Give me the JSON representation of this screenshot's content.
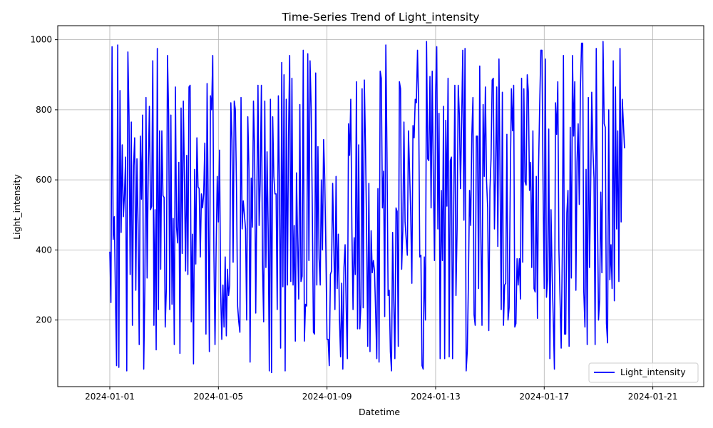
{
  "chart_data": {
    "type": "line",
    "title": "Time-Series Trend of Light_intensity",
    "xlabel": "Datetime",
    "ylabel": "Light_intensity",
    "x_ticks": [
      "2024-01-01",
      "2024-01-05",
      "2024-01-09",
      "2024-01-13",
      "2024-01-17",
      "2024-01-21"
    ],
    "y_ticks": [
      200,
      400,
      600,
      800,
      1000
    ],
    "xlim": [
      "2023-12-30T02:00",
      "2024-01-22T21:00"
    ],
    "ylim": [
      10,
      1040
    ],
    "grid": true,
    "legend_position": "lower-right",
    "series": [
      {
        "name": "Light_intensity",
        "color": "#0000ff",
        "x_start": "2024-01-01T00:00",
        "x_step_hours": 1,
        "values": [
          395,
          250,
          980,
          430,
          495,
          270,
          70,
          985,
          65,
          855,
          450,
          700,
          495,
          560,
          665,
          55,
          965,
          780,
          330,
          765,
          185,
          640,
          720,
          285,
          660,
          475,
          130,
          725,
          545,
          785,
          60,
          300,
          835,
          320,
          630,
          810,
          515,
          525,
          940,
          185,
          515,
          115,
          975,
          230,
          740,
          345,
          740,
          555,
          550,
          180,
          290,
          955,
          790,
          230,
          785,
          245,
          490,
          130,
          865,
          465,
          420,
          650,
          105,
          805,
          390,
          825,
          600,
          340,
          670,
          330,
          865,
          870,
          195,
          445,
          75,
          630,
          360,
          720,
          580,
          575,
          380,
          560,
          520,
          560,
          705,
          160,
          875,
          520,
          110,
          840,
          800,
          955,
          395,
          130,
          410,
          610,
          480,
          685,
          280,
          145,
          300,
          180,
          380,
          155,
          345,
          270,
          300,
          820,
          715,
          365,
          825,
          800,
          575,
          240,
          195,
          165,
          835,
          460,
          540,
          500,
          460,
          200,
          780,
          630,
          80,
          605,
          465,
          825,
          685,
          220,
          560,
          870,
          470,
          600,
          870,
          360,
          195,
          825,
          350,
          680,
          460,
          55,
          830,
          50,
          780,
          610,
          560,
          560,
          230,
          840,
          575,
          120,
          935,
          295,
          900,
          55,
          830,
          300,
          725,
          955,
          310,
          890,
          300,
          470,
          140,
          620,
          430,
          260,
          815,
          310,
          325,
          970,
          140,
          245,
          240,
          960,
          370,
          940,
          805,
          520,
          165,
          160,
          905,
          300,
          695,
          375,
          300,
          600,
          400,
          715,
          605,
          395,
          145,
          145,
          70,
          330,
          340,
          590,
          420,
          230,
          610,
          290,
          445,
          205,
          95,
          305,
          60,
          350,
          415,
          230,
          90,
          760,
          670,
          830,
          460,
          230,
          435,
          330,
          880,
          175,
          700,
          175,
          245,
          860,
          235,
          885,
          700,
          460,
          125,
          590,
          110,
          455,
          335,
          370,
          340,
          220,
          90,
          575,
          80,
          910,
          890,
          520,
          625,
          210,
          985,
          680,
          270,
          285,
          110,
          55,
          450,
          255,
          90,
          520,
          510,
          125,
          880,
          860,
          345,
          455,
          765,
          480,
          430,
          385,
          740,
          625,
          500,
          305,
          755,
          720,
          830,
          820,
          970,
          820,
          380,
          385,
          70,
          60,
          380,
          200,
          995,
          660,
          655,
          895,
          520,
          910,
          605,
          370,
          850,
          980,
          460,
          790,
          90,
          570,
          370,
          810,
          90,
          770,
          525,
          890,
          95,
          655,
          665,
          90,
          515,
          870,
          270,
          460,
          870,
          785,
          575,
          765,
          970,
          485,
          975,
          55,
          110,
          310,
          570,
          470,
          725,
          835,
          215,
          185,
          725,
          725,
          290,
          925,
          440,
          185,
          815,
          610,
          865,
          600,
          520,
          170,
          570,
          660,
          885,
          890,
          460,
          630,
          865,
          410,
          945,
          595,
          230,
          850,
          185,
          300,
          305,
          730,
          200,
          235,
          590,
          860,
          740,
          870,
          180,
          190,
          375,
          300,
          375,
          260,
          890,
          365,
          860,
          595,
          585,
          900,
          850,
          570,
          650,
          350,
          740,
          290,
          280,
          610,
          205,
          635,
          815,
          970,
          970,
          575,
          290,
          945,
          265,
          320,
          745,
          90,
          515,
          330,
          205,
          60,
          820,
          730,
          880,
          400,
          260,
          120,
          395,
          955,
          160,
          160,
          505,
          570,
          125,
          750,
          320,
          955,
          725,
          880,
          285,
          650,
          760,
          530,
          860,
          990,
          990,
          280,
          180,
          630,
          130,
          835,
          350,
          560,
          850,
          690,
          605,
          130,
          975,
          540,
          200,
          260,
          565,
          335,
          995,
          760,
          750,
          190,
          135,
          800,
          315,
          415,
          290,
          940,
          255,
          865,
          460,
          740,
          310,
          975,
          480,
          830,
          760,
          690
        ]
      }
    ]
  }
}
